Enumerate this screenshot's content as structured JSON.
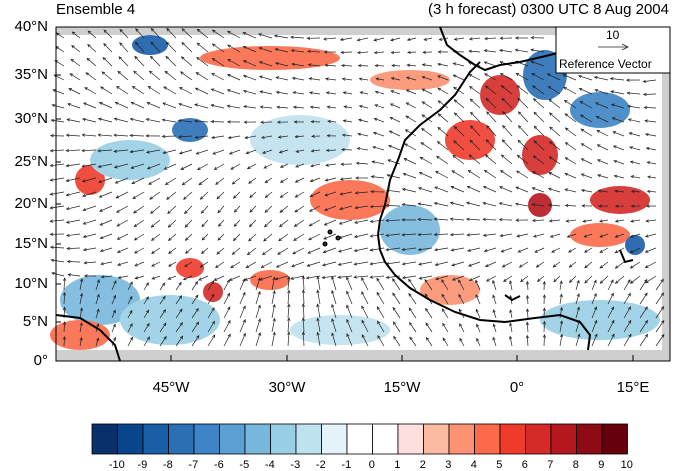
{
  "title_left": "Ensemble 4",
  "title_right": "(3 h forecast) 0300 UTC 8 Aug 2004",
  "reference": {
    "magnitude_label": "10",
    "label": "Reference Vector"
  },
  "y_ticks": [
    "40°N",
    "35°N",
    "30°N",
    "25°N",
    "20°N",
    "15°N",
    "10°N",
    "5°N",
    "0°"
  ],
  "x_ticks": [
    "45°W",
    "30°W",
    "15°W",
    "0°",
    "15°E"
  ],
  "colorbar": {
    "labels": [
      "-10",
      "-9",
      "-8",
      "-7",
      "-6",
      "-5",
      "-4",
      "-3",
      "-2",
      "-1",
      "0",
      "1",
      "2",
      "3",
      "4",
      "5",
      "6",
      "7",
      "8",
      "9",
      "10"
    ],
    "colors": [
      "#08306b",
      "#08458a",
      "#1a5ea8",
      "#2b70b5",
      "#3d85c6",
      "#5aa0d2",
      "#78b7dc",
      "#98cfe5",
      "#bfe2ef",
      "#e3f3f9",
      "#ffffff",
      "#ffffff",
      "#fde0dd",
      "#fcbba1",
      "#fc9272",
      "#fb6a4a",
      "#ef3b2c",
      "#d42a28",
      "#b5171f",
      "#8e0a14",
      "#67000d"
    ]
  },
  "colors": {
    "land_gray": "#cfcfcf",
    "coast": "#000000"
  }
}
